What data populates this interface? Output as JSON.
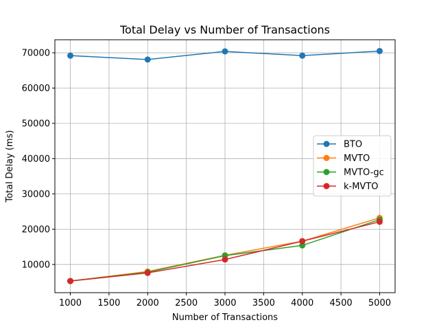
{
  "chart_data": {
    "type": "line",
    "title": "Total Delay vs Number of Transactions",
    "xlabel": "Number of Transactions",
    "ylabel": "Total Delay (ms)",
    "x": [
      1000,
      2000,
      3000,
      4000,
      5000
    ],
    "xlim": [
      800,
      5200
    ],
    "ylim": [
      2000,
      73700
    ],
    "xticks": [
      1000,
      1500,
      2000,
      2500,
      3000,
      3500,
      4000,
      4500,
      5000
    ],
    "yticks": [
      10000,
      20000,
      30000,
      40000,
      50000,
      60000,
      70000
    ],
    "grid": true,
    "legend_position": "center-right",
    "marker": "circle",
    "series": [
      {
        "name": "BTO",
        "color": "#1f77b4",
        "values": [
          69200,
          68100,
          70400,
          69200,
          70500
        ]
      },
      {
        "name": "MVTO",
        "color": "#ff7f0e",
        "values": [
          5300,
          8000,
          12600,
          16600,
          23200
        ]
      },
      {
        "name": "MVTO-gc",
        "color": "#2ca02c",
        "values": [
          5300,
          7800,
          12500,
          15400,
          22700
        ]
      },
      {
        "name": "k-MVTO",
        "color": "#d62728",
        "values": [
          5300,
          7600,
          11400,
          16600,
          22100
        ]
      }
    ]
  }
}
